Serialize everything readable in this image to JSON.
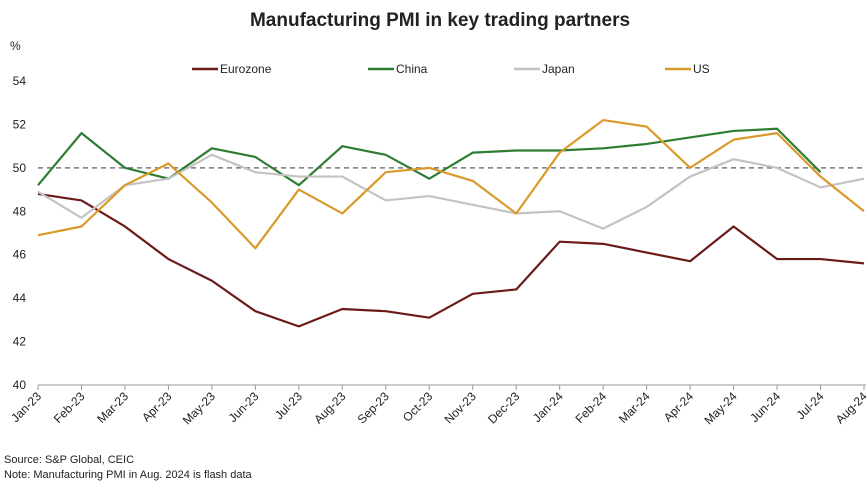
{
  "chart_data": {
    "type": "line",
    "title": "Manufacturing PMI in key trading partners",
    "y_label": "%",
    "categories": [
      "Jan-23",
      "Feb-23",
      "Mar-23",
      "Apr-23",
      "May-23",
      "Jun-23",
      "Jul-23",
      "Aug-23",
      "Sep-23",
      "Oct-23",
      "Nov-23",
      "Dec-23",
      "Jan-24",
      "Feb-24",
      "Mar-24",
      "Apr-24",
      "May-24",
      "Jun-24",
      "Jul-24",
      "Aug-24"
    ],
    "series": [
      {
        "name": "Eurozone",
        "color": "#6b1a1a",
        "values": [
          48.8,
          48.5,
          47.3,
          45.8,
          44.8,
          43.4,
          42.7,
          43.5,
          43.4,
          43.1,
          44.2,
          44.4,
          46.6,
          46.5,
          46.1,
          45.7,
          47.3,
          45.8,
          45.8,
          45.6
        ]
      },
      {
        "name": "China",
        "color": "#2e7d32",
        "values": [
          49.2,
          51.6,
          50.0,
          49.5,
          50.9,
          50.5,
          49.2,
          51.0,
          50.6,
          49.5,
          50.7,
          50.8,
          50.8,
          50.9,
          51.1,
          51.4,
          51.7,
          51.8,
          49.8,
          null
        ]
      },
      {
        "name": "Japan",
        "color": "#c3c3c3",
        "values": [
          48.9,
          47.7,
          49.2,
          49.5,
          50.6,
          49.8,
          49.6,
          49.6,
          48.5,
          48.7,
          48.3,
          47.9,
          48.0,
          47.2,
          48.2,
          49.6,
          50.4,
          50.0,
          49.1,
          49.5
        ]
      },
      {
        "name": "US",
        "color": "#d99a2b",
        "values": [
          46.9,
          47.3,
          49.2,
          50.2,
          48.4,
          46.3,
          49.0,
          47.9,
          49.8,
          50.0,
          49.4,
          47.9,
          50.7,
          52.2,
          51.9,
          50.0,
          51.3,
          51.6,
          49.6,
          48.0
        ]
      }
    ],
    "reference_line": 50,
    "ylim": [
      40,
      54
    ],
    "yticks": [
      40,
      42,
      44,
      46,
      48,
      50,
      52,
      54
    ],
    "legend": "top",
    "source": "Source: S&P Global, CEIC",
    "note": "Note: Manufacturing PMI in Aug. 2024 is flash data"
  }
}
